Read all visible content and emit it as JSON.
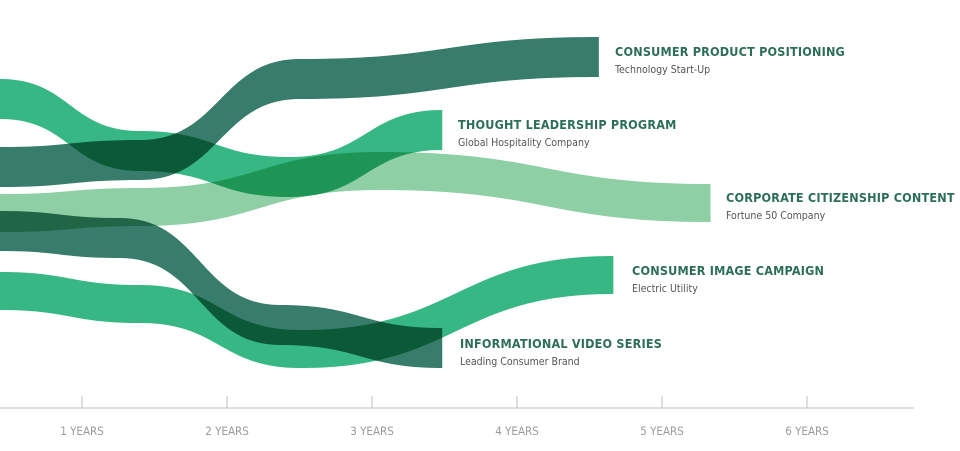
{
  "chart_data": {
    "type": "area",
    "x_ticks": [
      "1 YEARS",
      "2 YEARS",
      "3 YEARS",
      "4 YEARS",
      "5 YEARS",
      "6 YEARS"
    ],
    "xlim": [
      0,
      6.3
    ],
    "series": [
      {
        "name": "CORPORATE CITIZENSHIP CONTENT",
        "subtitle": "Fortune 50 Company",
        "end_years": 4.9,
        "color": "#8ecfa5"
      },
      {
        "name": "THOUGHT LEADERSHIP PROGRAM",
        "subtitle": "Global Hospitality Company",
        "end_years": 3.05,
        "color": "#2fb57f"
      },
      {
        "name": "CONSUMER IMAGE CAMPAIGN",
        "subtitle": "Electric Utility",
        "end_years": 4.23,
        "color": "#2fb57f"
      },
      {
        "name": "CONSUMER PRODUCT POSITIONING",
        "subtitle": "Technology Start-Up",
        "end_years": 4.13,
        "color": "#2d7563"
      },
      {
        "name": "INFORMATIONAL VIDEO SERIES",
        "subtitle": "Leading Consumer Brand",
        "end_years": 3.05,
        "color": "#2d7563"
      }
    ],
    "colors": {
      "label_title": "#2d6e58",
      "label_sub": "#555555",
      "axis": "#bdbdbd",
      "tick_label": "#9a9a9a"
    }
  }
}
